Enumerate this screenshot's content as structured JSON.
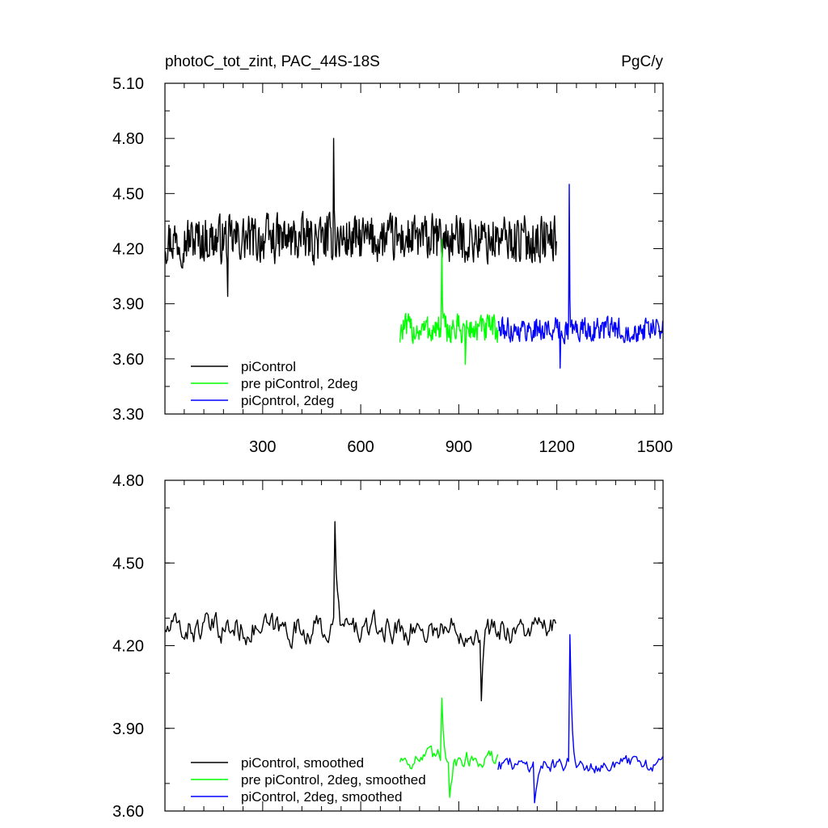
{
  "chart_data": [
    {
      "type": "line",
      "title": "photoC_tot_zint, PAC_44S-18S",
      "units": "PgC/y",
      "xlim": [
        1,
        1525
      ],
      "ylim": [
        3.3,
        5.1
      ],
      "xticks": [
        300,
        600,
        900,
        1200,
        1500
      ],
      "xtick_labels": [
        "300",
        "600",
        "900",
        "1200",
        "1500"
      ],
      "yticks": [
        3.3,
        3.6,
        3.9,
        4.2,
        4.5,
        4.8,
        5.1
      ],
      "ytick_labels": [
        "3.30",
        "3.60",
        "3.90",
        "4.20",
        "4.50",
        "4.80",
        "5.10"
      ],
      "legend_position": "bottom-left",
      "series": [
        {
          "name": "piControl",
          "color": "#000000",
          "x_start": 1,
          "x_end": 1200,
          "mean": 4.25,
          "amplitude": 0.16,
          "spike_max": 4.8,
          "spike_min": 3.94
        },
        {
          "name": "pre piControl, 2deg",
          "color": "#00ff00",
          "x_start": 720,
          "x_end": 1020,
          "mean": 3.76,
          "amplitude": 0.1,
          "spike_max": 4.25,
          "spike_min": 3.57
        },
        {
          "name": "piControl, 2deg",
          "color": "#0000ff",
          "x_start": 1020,
          "x_end": 1525,
          "mean": 3.76,
          "amplitude": 0.08,
          "spike_max": 4.55,
          "spike_min": 3.55
        }
      ]
    },
    {
      "type": "line",
      "xlim": [
        1,
        1525
      ],
      "ylim": [
        3.6,
        4.8
      ],
      "xticks": [
        300,
        600,
        900,
        1200,
        1500
      ],
      "xtick_labels": [],
      "yticks": [
        3.6,
        3.9,
        4.2,
        4.5,
        4.8
      ],
      "ytick_labels": [
        "3.60",
        "3.90",
        "4.20",
        "4.50",
        "4.80"
      ],
      "legend_position": "bottom-left",
      "series": [
        {
          "name": "piControl, smoothed",
          "color": "#000000",
          "x_start": 1,
          "x_end": 1200,
          "mean": 4.26,
          "amplitude": 0.09,
          "spike_max": 4.65,
          "spike_min": 4.0
        },
        {
          "name": "pre piControl, 2deg, smoothed",
          "color": "#00ff00",
          "x_start": 720,
          "x_end": 1020,
          "mean": 3.79,
          "amplitude": 0.06,
          "spike_max": 4.01,
          "spike_min": 3.65
        },
        {
          "name": "piControl, 2deg, smoothed",
          "color": "#0000ff",
          "x_start": 1020,
          "x_end": 1525,
          "mean": 3.77,
          "amplitude": 0.05,
          "spike_max": 4.24,
          "spike_min": 3.63
        }
      ]
    }
  ]
}
